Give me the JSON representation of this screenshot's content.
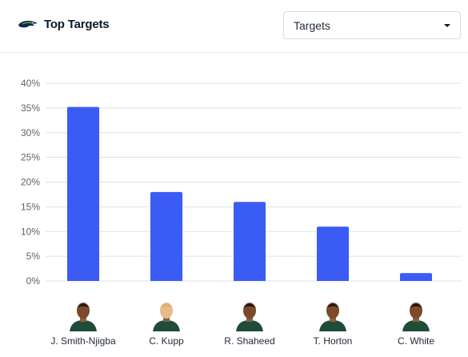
{
  "header": {
    "title": "Top Targets",
    "team_logo_icon": "seahawks-logo-icon"
  },
  "stat_select": {
    "selected": "Targets",
    "caret_icon": "caret-down-icon"
  },
  "colors": {
    "bar": "#3b5bf5",
    "grid": "#dfe3e8",
    "axis_text": "#5b6470",
    "title": "#0b1b2a",
    "jersey": "#1f4d3a"
  },
  "chart_data": {
    "type": "bar",
    "title": "",
    "xlabel": "",
    "ylabel": "",
    "ylim": [
      0,
      40
    ],
    "y_tick_values": [
      0,
      5,
      10,
      15,
      20,
      25,
      30,
      35,
      40
    ],
    "y_tick_labels": [
      "0%",
      "5%",
      "10%",
      "15%",
      "20%",
      "25%",
      "30%",
      "35%",
      "40%"
    ],
    "categories": [
      "J. Smith-Njigba",
      "C. Kupp",
      "R. Shaheed",
      "T. Horton",
      "C. White"
    ],
    "values": [
      35.2,
      18.0,
      16.0,
      11.0,
      1.6
    ],
    "grid": true,
    "player_avatar_icons": [
      "player-headshot-icon",
      "player-headshot-icon",
      "player-headshot-icon",
      "player-headshot-icon",
      "player-headshot-icon"
    ]
  }
}
